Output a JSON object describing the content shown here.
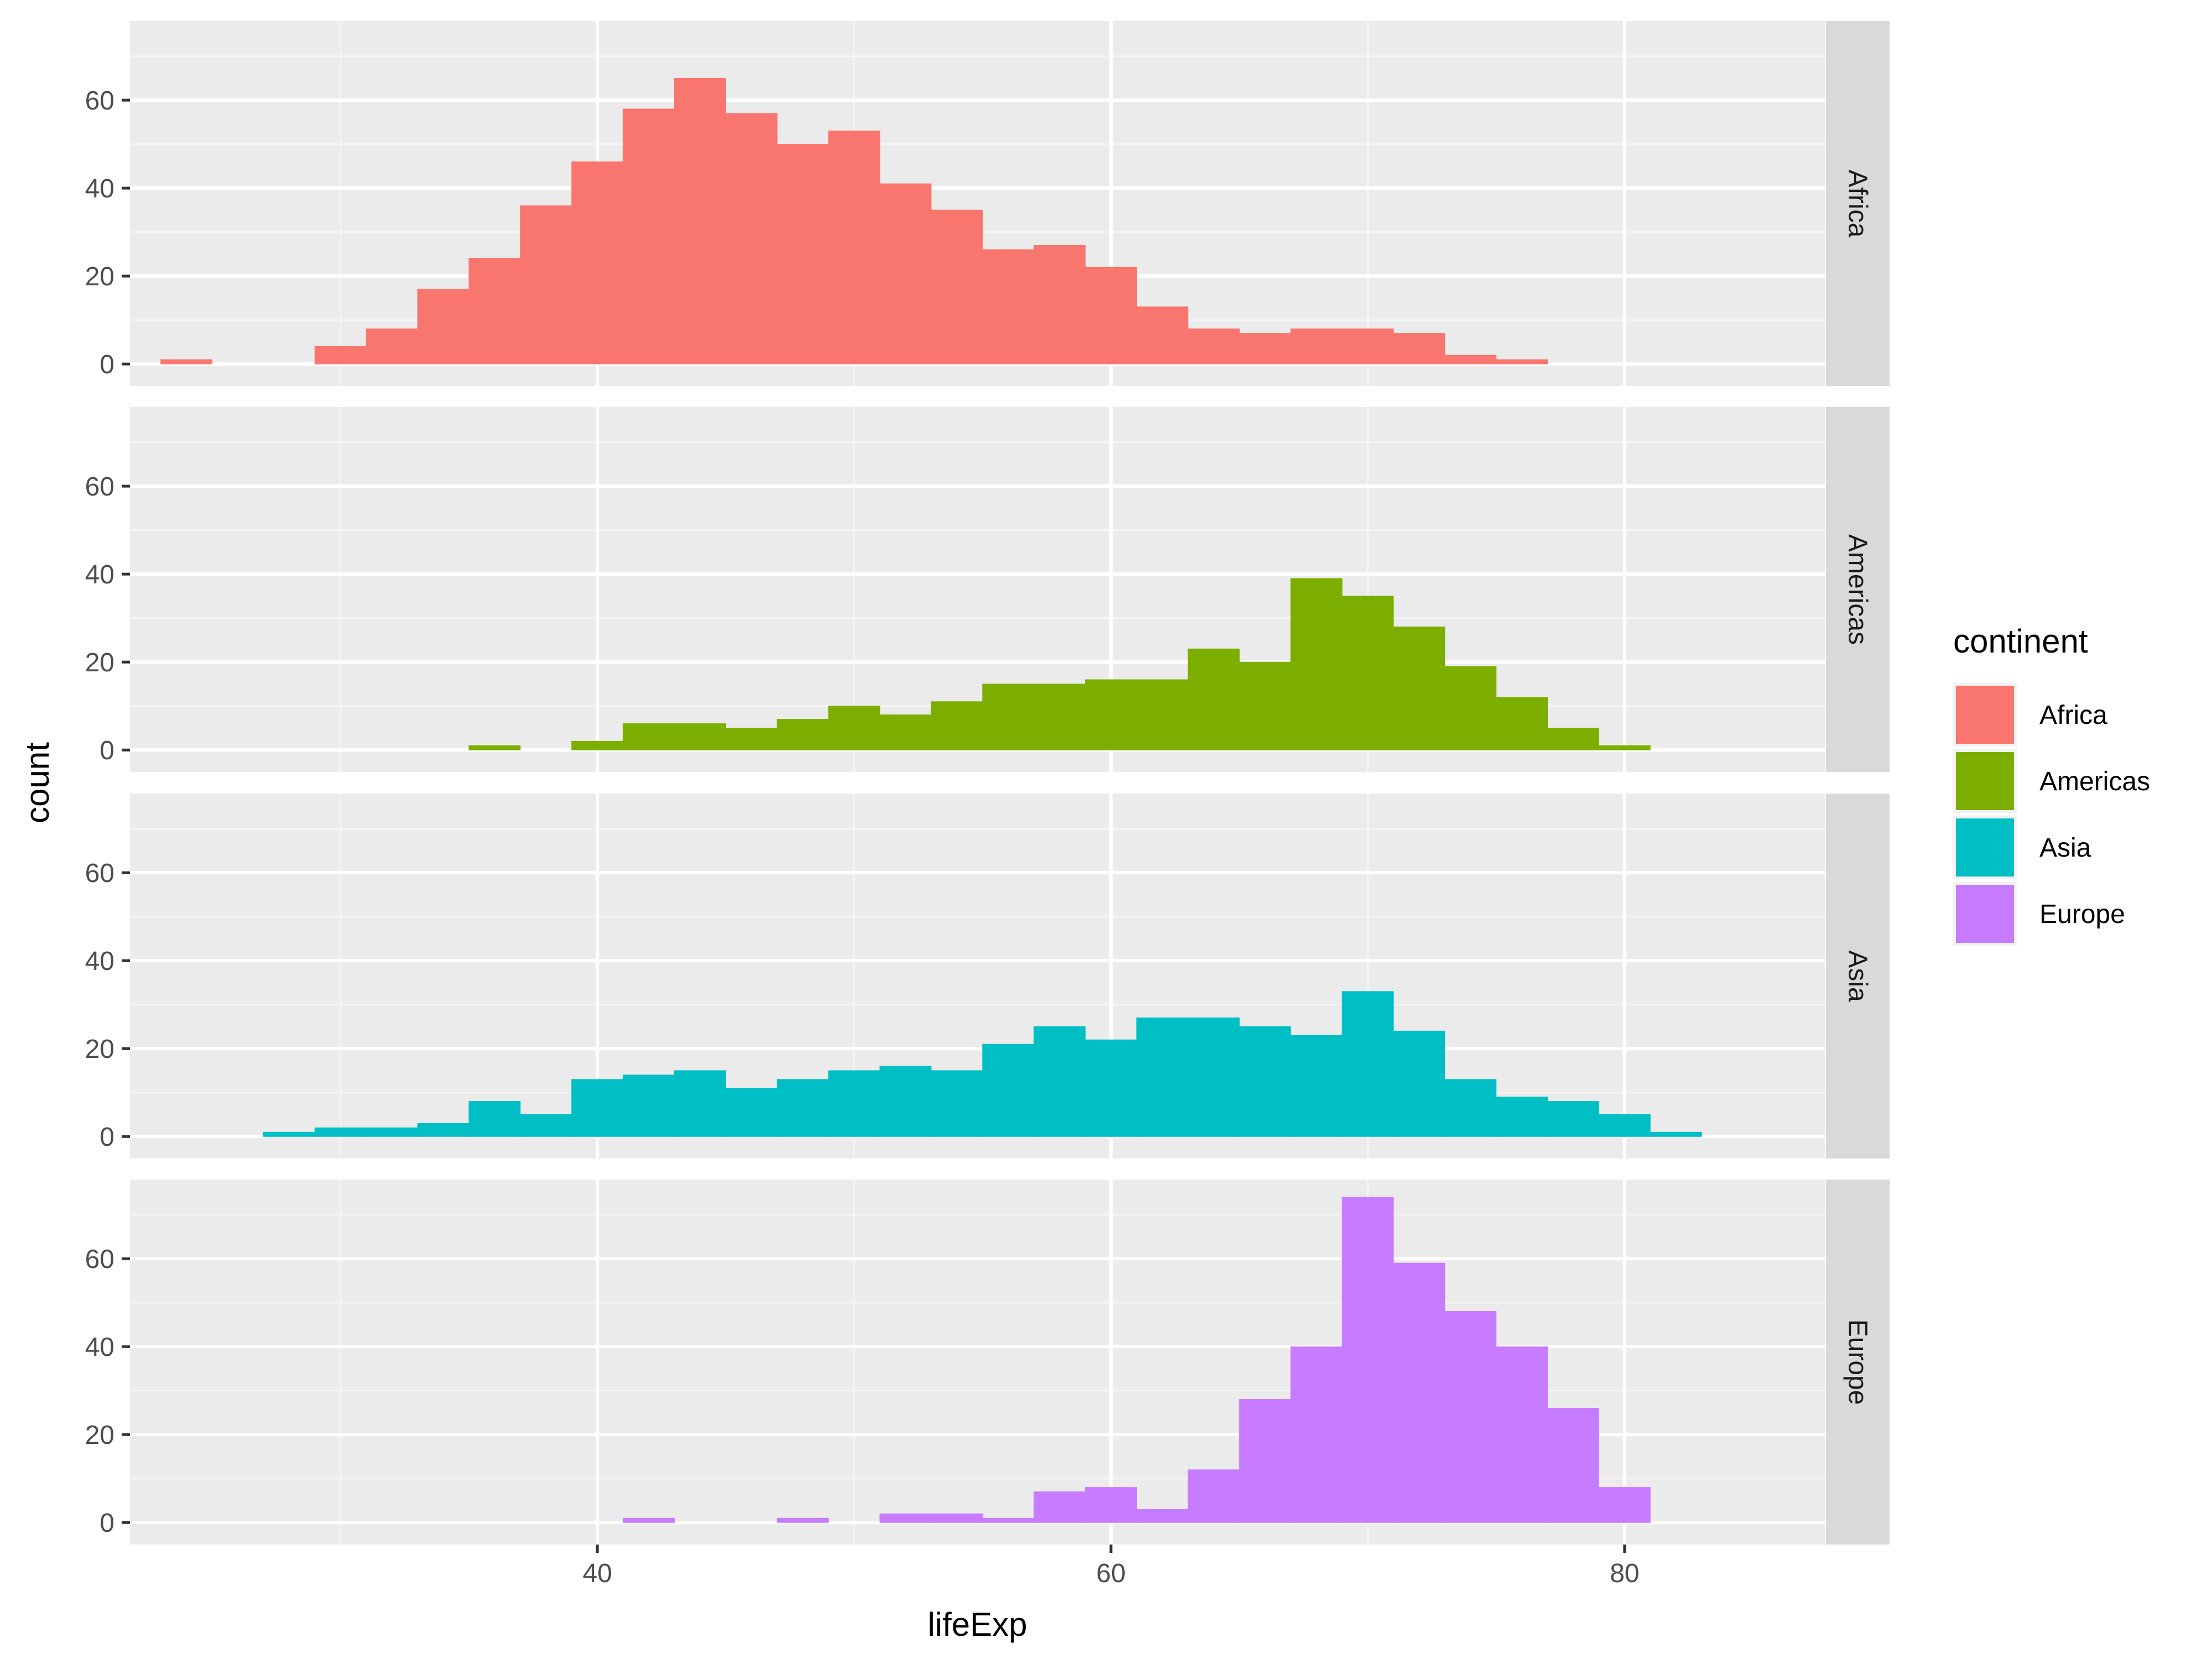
{
  "chart_data": {
    "type": "bar",
    "subtype": "faceted-histogram",
    "xlabel": "lifeExp",
    "ylabel": "count",
    "xlim": [
      21.8,
      87.8
    ],
    "ylim": [
      -5,
      78
    ],
    "x_ticks": [
      40,
      60,
      80
    ],
    "y_ticks": [
      0,
      20,
      40,
      60
    ],
    "grid": true,
    "legend": {
      "title": "continent",
      "position": "right"
    },
    "bin_width": 2.0,
    "bin_start": 23.0,
    "panel_labels": [
      "Africa",
      "Americas",
      "Asia",
      "Europe"
    ],
    "series": [
      {
        "name": "Africa",
        "color": "#F8766D",
        "values": [
          1,
          0,
          0,
          4,
          8,
          17,
          24,
          36,
          46,
          58,
          65,
          57,
          50,
          53,
          41,
          35,
          26,
          27,
          22,
          13,
          8,
          7,
          8,
          8,
          7,
          2,
          1,
          0,
          0,
          0,
          0,
          0
        ]
      },
      {
        "name": "Americas",
        "color": "#7CAE00",
        "values": [
          0,
          0,
          0,
          0,
          0,
          0,
          1,
          0,
          2,
          6,
          6,
          5,
          7,
          10,
          8,
          11,
          15,
          15,
          16,
          16,
          23,
          20,
          39,
          35,
          28,
          19,
          12,
          5,
          1,
          0,
          0,
          0
        ]
      },
      {
        "name": "Asia",
        "color": "#00BFC4",
        "values": [
          0,
          0,
          1,
          2,
          2,
          3,
          8,
          5,
          13,
          14,
          15,
          11,
          13,
          15,
          16,
          15,
          21,
          25,
          22,
          27,
          27,
          25,
          23,
          33,
          24,
          13,
          9,
          8,
          5,
          1,
          0,
          0
        ]
      },
      {
        "name": "Europe",
        "color": "#C77CFF",
        "values": [
          0,
          0,
          0,
          0,
          0,
          0,
          0,
          0,
          0,
          1,
          0,
          0,
          1,
          0,
          2,
          2,
          1,
          7,
          8,
          3,
          12,
          28,
          40,
          74,
          59,
          48,
          40,
          26,
          8,
          0,
          0,
          0
        ]
      }
    ]
  }
}
